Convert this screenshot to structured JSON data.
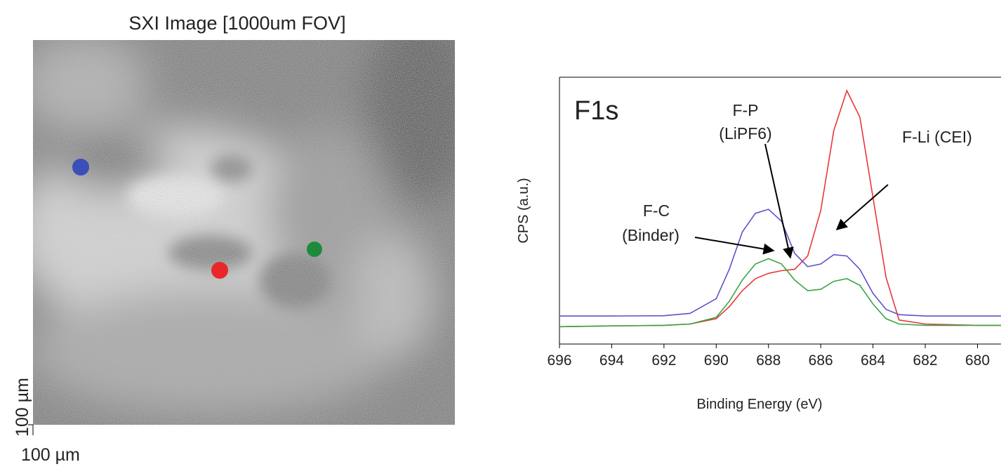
{
  "image": {
    "title": "SXI Image [1000um FOV]",
    "scale_y_label": "100 µm",
    "scale_x_label": "100 µm"
  },
  "chart_data": {
    "type": "line",
    "label": "F1s",
    "xlabel": "Binding Energy (eV)",
    "ylabel": "CPS (a.u.)",
    "xlim": [
      696,
      679.1
    ],
    "xticks": [
      696,
      694,
      692,
      690,
      688,
      686,
      684,
      682,
      680
    ],
    "ylim": [
      0,
      100
    ],
    "annotations": [
      [
        "F-P",
        "(LiPF6)"
      ],
      [
        "F-Li (CEI)"
      ],
      [
        "F-C",
        "(Binder)"
      ]
    ],
    "x": [
      696,
      694,
      692,
      691,
      690,
      689.5,
      689,
      688.5,
      688,
      687.5,
      687,
      686.5,
      686,
      685.5,
      685,
      684.5,
      684,
      683.5,
      683,
      682,
      680,
      679.1
    ],
    "series": [
      {
        "color": "#e8373a",
        "values": [
          6.5,
          6.8,
          7,
          7.5,
          9.5,
          14,
          20,
          24.5,
          26.5,
          27.5,
          28,
          33,
          50,
          80,
          95,
          85,
          55,
          25,
          9,
          7.5,
          7,
          7
        ]
      },
      {
        "color": "#5b55c8",
        "values": [
          10.5,
          10.5,
          10.6,
          11.5,
          17,
          28,
          42,
          49,
          50.5,
          46,
          34,
          29,
          30,
          33.5,
          33,
          28,
          19,
          13,
          11,
          10.5,
          10.5,
          10.5
        ]
      },
      {
        "color": "#3aa547",
        "values": [
          6.5,
          6.8,
          7,
          7.5,
          10,
          16,
          24,
          30,
          32,
          30,
          24,
          20,
          20.5,
          23.5,
          24.5,
          22,
          15,
          9.5,
          7.5,
          7,
          7,
          7
        ]
      }
    ]
  }
}
